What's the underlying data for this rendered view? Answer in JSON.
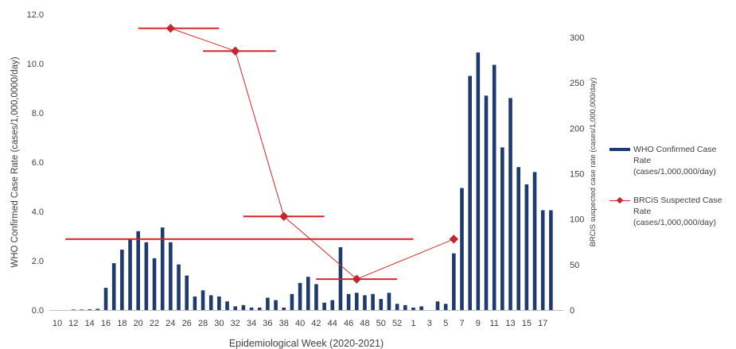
{
  "chart_data": {
    "type": "bar",
    "xlabel": "Epidemiological Week (2020-2021)",
    "y1label": "WHO Confirmed Case Rate (cases/1,000,0000/day)",
    "y2label": "BRCiS suspected case rate (cases/1,000,000/day)",
    "y1lim": [
      0,
      12
    ],
    "y1ticks": [
      "0.0",
      "2.0",
      "4.0",
      "6.0",
      "8.0",
      "10.0",
      "12.0"
    ],
    "y2lim": [
      0,
      325
    ],
    "y2ticks": [
      "0",
      "50",
      "100",
      "150",
      "200",
      "250",
      "300"
    ],
    "grid": false,
    "legend_position": "right",
    "categories": [
      "10",
      "11",
      "12",
      "13",
      "14",
      "15",
      "16",
      "17",
      "18",
      "19",
      "20",
      "21",
      "22",
      "23",
      "24",
      "25",
      "26",
      "27",
      "28",
      "29",
      "30",
      "31",
      "32",
      "33",
      "34",
      "35",
      "36",
      "37",
      "38",
      "39",
      "40",
      "41",
      "42",
      "43",
      "44",
      "45",
      "46",
      "47",
      "48",
      "49",
      "50",
      "51",
      "52",
      "53",
      "1",
      "2",
      "3",
      "4",
      "5",
      "6",
      "7",
      "8",
      "9",
      "10",
      "11",
      "12",
      "13",
      "14",
      "15",
      "16",
      "17",
      "18"
    ],
    "x_tick_labels": [
      "10",
      "12",
      "14",
      "16",
      "18",
      "20",
      "22",
      "24",
      "26",
      "28",
      "30",
      "32",
      "34",
      "36",
      "38",
      "40",
      "42",
      "44",
      "46",
      "48",
      "50",
      "52",
      "1",
      "3",
      "5",
      "7",
      "9",
      "11",
      "13",
      "15",
      "17"
    ],
    "x_tick_positions": [
      0,
      2,
      4,
      6,
      8,
      10,
      12,
      14,
      16,
      18,
      20,
      22,
      24,
      26,
      28,
      30,
      32,
      34,
      36,
      38,
      40,
      42,
      44,
      46,
      48,
      50,
      52,
      54,
      56,
      58,
      60
    ],
    "series": [
      {
        "name": "WHO Confirmed  Case Rate (cases/1,000,000/day)",
        "kind": "bar",
        "axis": "left",
        "color": "#1f3a6e",
        "values": [
          0,
          0,
          0.02,
          0.02,
          0.03,
          0.05,
          0.9,
          1.9,
          2.45,
          2.9,
          3.2,
          2.75,
          2.1,
          3.35,
          2.75,
          1.85,
          1.4,
          0.55,
          0.8,
          0.6,
          0.55,
          0.35,
          0.15,
          0.2,
          0.1,
          0.1,
          0.5,
          0.4,
          0.1,
          0.65,
          1.1,
          1.35,
          1.05,
          0.3,
          0.4,
          2.55,
          0.65,
          0.7,
          0.6,
          0.65,
          0.45,
          0.7,
          0.25,
          0.2,
          0.1,
          0.15,
          0,
          0.35,
          0.25,
          2.3,
          4.95,
          9.5,
          10.45,
          8.7,
          9.95,
          6.6,
          8.6,
          5.8,
          5.1,
          5.6,
          4.05,
          4.05
        ]
      },
      {
        "name": "BRCiS Suspected Case Rate (cases/1,000,000/day)",
        "kind": "line",
        "axis": "right",
        "color": "#d62728",
        "marker_color": "#c0282d",
        "points": [
          {
            "x": 24,
            "y": 310,
            "x_from": 20,
            "x_to": 30
          },
          {
            "x": 32,
            "y": 285,
            "x_from": 28,
            "x_to": 37
          },
          {
            "x": 38,
            "y": 103,
            "x_from": 33,
            "x_to": 43
          },
          {
            "x": 47,
            "y": 34,
            "x_from": 42,
            "x_to": 52
          },
          {
            "x": 6,
            "y": 78,
            "x_from": 1,
            "x_to": 11
          }
        ]
      }
    ]
  }
}
